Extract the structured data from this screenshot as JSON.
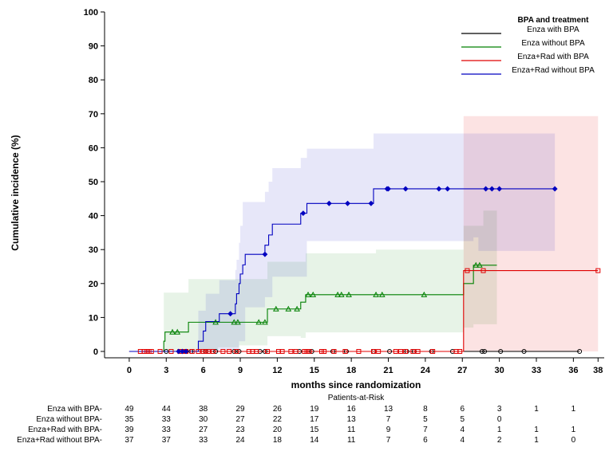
{
  "chart_data": {
    "type": "line",
    "subtype": "step",
    "xlabel": "months since randomization",
    "ylabel": "Cumulative incidence (%)",
    "xlim": [
      -2,
      38.5
    ],
    "ylim": [
      0,
      100
    ],
    "x_ticks": [
      0,
      3,
      6,
      9,
      12,
      15,
      18,
      21,
      24,
      27,
      30,
      33,
      36,
      38
    ],
    "y_ticks": [
      0,
      10,
      20,
      30,
      40,
      50,
      60,
      70,
      80,
      90,
      100
    ],
    "grid": false,
    "legend": {
      "title": "BPA and treatment",
      "placement": "top-right",
      "entries": [
        "Enza with BPA",
        "Enza without BPA",
        "Enza+Rad with BPA",
        "Enza+Rad without BPA"
      ]
    },
    "series": [
      {
        "name": "Enza with BPA",
        "color": "#000000",
        "marker": "circle",
        "steps": [
          [
            0,
            0
          ],
          [
            36.5,
            0
          ]
        ],
        "censored": [
          [
            3,
            0
          ],
          [
            4.2,
            0
          ],
          [
            4.6,
            0
          ],
          [
            5,
            0
          ],
          [
            6.2,
            0
          ],
          [
            7,
            0
          ],
          [
            8.5,
            0
          ],
          [
            8.9,
            0
          ],
          [
            10.6,
            0
          ],
          [
            11,
            0
          ],
          [
            13.8,
            0
          ],
          [
            14.8,
            0
          ],
          [
            16.5,
            0
          ],
          [
            17.6,
            0
          ],
          [
            19.8,
            0
          ],
          [
            21.1,
            0
          ],
          [
            22.5,
            0
          ],
          [
            23.1,
            0
          ],
          [
            24.5,
            0
          ],
          [
            26.2,
            0
          ],
          [
            28.6,
            0
          ],
          [
            28.8,
            0
          ],
          [
            30.1,
            0
          ],
          [
            32,
            0
          ],
          [
            36.5,
            0
          ]
        ]
      },
      {
        "name": "Enza without BPA",
        "color": "#008000",
        "marker": "triangle",
        "steps": [
          [
            0,
            0
          ],
          [
            2.8,
            0
          ],
          [
            2.8,
            3
          ],
          [
            2.9,
            3
          ],
          [
            2.9,
            5.7
          ],
          [
            4.8,
            5.7
          ],
          [
            4.8,
            8.6
          ],
          [
            11.2,
            8.6
          ],
          [
            11.2,
            12.5
          ],
          [
            13.9,
            12.5
          ],
          [
            13.9,
            14.5
          ],
          [
            14.3,
            14.5
          ],
          [
            14.3,
            16.7
          ],
          [
            27.1,
            16.7
          ],
          [
            27.1,
            20
          ],
          [
            27.9,
            20
          ],
          [
            27.9,
            25.4
          ],
          [
            29.8,
            25.4
          ]
        ],
        "censored": [
          [
            3.5,
            5.7
          ],
          [
            3.9,
            5.7
          ],
          [
            7,
            8.6
          ],
          [
            8.5,
            8.6
          ],
          [
            8.8,
            8.6
          ],
          [
            10.5,
            8.6
          ],
          [
            11,
            8.6
          ],
          [
            11.9,
            12.5
          ],
          [
            12.9,
            12.5
          ],
          [
            13.6,
            12.5
          ],
          [
            14.5,
            16.7
          ],
          [
            14.9,
            16.7
          ],
          [
            16.9,
            16.7
          ],
          [
            17.2,
            16.7
          ],
          [
            17.8,
            16.7
          ],
          [
            20,
            16.7
          ],
          [
            20.5,
            16.7
          ],
          [
            23.9,
            16.7
          ],
          [
            28.1,
            25.4
          ],
          [
            28.4,
            25.4
          ]
        ],
        "ci_upper": [
          [
            2.8,
            17.3
          ],
          [
            4.8,
            21.3
          ],
          [
            11.2,
            26.4
          ],
          [
            14.3,
            28.9
          ],
          [
            20,
            30
          ],
          [
            27.1,
            37
          ],
          [
            28.7,
            41.5
          ],
          [
            29.8,
            41.5
          ]
        ],
        "ci_lower": [
          [
            2.8,
            0
          ],
          [
            4.8,
            0
          ],
          [
            6.1,
            0.5
          ],
          [
            7.2,
            1.2
          ],
          [
            8.9,
            1.8
          ],
          [
            11.2,
            4.5
          ],
          [
            13.9,
            4
          ],
          [
            14.3,
            5.6
          ],
          [
            27.1,
            7
          ],
          [
            27.9,
            8
          ],
          [
            29.8,
            8
          ]
        ]
      },
      {
        "name": "Enza+Rad with BPA",
        "color": "#e00000",
        "marker": "square",
        "steps": [
          [
            0,
            0
          ],
          [
            27.1,
            0
          ],
          [
            27.1,
            23.8
          ],
          [
            38,
            23.8
          ]
        ],
        "censored": [
          [
            0.9,
            0
          ],
          [
            1.2,
            0
          ],
          [
            1.4,
            0
          ],
          [
            1.6,
            0
          ],
          [
            1.8,
            0
          ],
          [
            2.5,
            0
          ],
          [
            3.4,
            0
          ],
          [
            4.1,
            0
          ],
          [
            4.4,
            0
          ],
          [
            4.6,
            0
          ],
          [
            5.1,
            0
          ],
          [
            5.6,
            0
          ],
          [
            6,
            0
          ],
          [
            6.2,
            0
          ],
          [
            6.4,
            0
          ],
          [
            6.8,
            0
          ],
          [
            7.6,
            0
          ],
          [
            8.1,
            0
          ],
          [
            8.7,
            0
          ],
          [
            9.7,
            0
          ],
          [
            10,
            0
          ],
          [
            10.3,
            0
          ],
          [
            11.2,
            0
          ],
          [
            12.1,
            0
          ],
          [
            12.4,
            0
          ],
          [
            13.1,
            0
          ],
          [
            13.5,
            0
          ],
          [
            14.2,
            0
          ],
          [
            14.4,
            0
          ],
          [
            14.6,
            0
          ],
          [
            15.6,
            0
          ],
          [
            15.8,
            0
          ],
          [
            16.6,
            0
          ],
          [
            17.5,
            0
          ],
          [
            18.6,
            0
          ],
          [
            19.8,
            0
          ],
          [
            20.2,
            0
          ],
          [
            21.6,
            0
          ],
          [
            22,
            0
          ],
          [
            22.4,
            0
          ],
          [
            23,
            0
          ],
          [
            23.4,
            0
          ],
          [
            24.6,
            0
          ],
          [
            26.5,
            0
          ],
          [
            26.8,
            0
          ],
          [
            27.4,
            23.8
          ],
          [
            28.7,
            23.8
          ],
          [
            38,
            23.8
          ]
        ],
        "ci_upper": [
          [
            27.1,
            69.3
          ],
          [
            38,
            69.3
          ]
        ],
        "ci_lower": [
          [
            27.1,
            0
          ],
          [
            38,
            0
          ]
        ]
      },
      {
        "name": "Enza+Rad without BPA",
        "color": "#0000c0",
        "marker": "diamond",
        "steps": [
          [
            0,
            0
          ],
          [
            5.6,
            0
          ],
          [
            5.6,
            3
          ],
          [
            6,
            3
          ],
          [
            6,
            6
          ],
          [
            6.2,
            6
          ],
          [
            6.2,
            8.8
          ],
          [
            7.3,
            8.8
          ],
          [
            7.3,
            11.1
          ],
          [
            8.6,
            11.1
          ],
          [
            8.6,
            14
          ],
          [
            8.7,
            14
          ],
          [
            8.7,
            17
          ],
          [
            8.9,
            17
          ],
          [
            8.9,
            20
          ],
          [
            9,
            20
          ],
          [
            9,
            22.8
          ],
          [
            9.2,
            22.8
          ],
          [
            9.2,
            25.5
          ],
          [
            9.4,
            25.5
          ],
          [
            9.4,
            28.6
          ],
          [
            11,
            28.6
          ],
          [
            11,
            31.3
          ],
          [
            11.3,
            31.3
          ],
          [
            11.3,
            34.3
          ],
          [
            11.6,
            34.3
          ],
          [
            11.6,
            37.5
          ],
          [
            13.9,
            37.5
          ],
          [
            13.9,
            40.7
          ],
          [
            14.4,
            40.7
          ],
          [
            14.4,
            43.6
          ],
          [
            19.8,
            43.6
          ],
          [
            19.8,
            47.9
          ],
          [
            34.5,
            47.9
          ]
        ],
        "censored": [
          [
            4,
            0
          ],
          [
            4.3,
            0
          ],
          [
            4.6,
            0
          ],
          [
            8.2,
            11.1
          ],
          [
            11,
            28.6
          ],
          [
            14.1,
            40.7
          ],
          [
            16.2,
            43.6
          ],
          [
            17.7,
            43.6
          ],
          [
            19.6,
            43.6
          ],
          [
            20.9,
            47.9
          ],
          [
            21,
            47.9
          ],
          [
            22.4,
            47.9
          ],
          [
            25.1,
            47.9
          ],
          [
            25.8,
            47.9
          ],
          [
            28.9,
            47.9
          ],
          [
            29.4,
            47.9
          ],
          [
            30,
            47.9
          ],
          [
            34.5,
            47.9
          ]
        ],
        "ci_upper": [
          [
            5.6,
            12
          ],
          [
            6.2,
            17
          ],
          [
            7.3,
            21
          ],
          [
            8.6,
            24
          ],
          [
            8.7,
            27
          ],
          [
            8.9,
            32
          ],
          [
            9,
            37
          ],
          [
            9.2,
            44
          ],
          [
            11,
            47
          ],
          [
            11.3,
            50
          ],
          [
            11.6,
            54
          ],
          [
            13.9,
            57
          ],
          [
            14.4,
            59.7
          ],
          [
            19.8,
            64.2
          ],
          [
            34.5,
            64.2
          ]
        ],
        "ci_lower": [
          [
            5.6,
            0
          ],
          [
            7.3,
            0.5
          ],
          [
            8.9,
            3
          ],
          [
            9.4,
            13
          ],
          [
            11,
            16
          ],
          [
            11.6,
            22
          ],
          [
            14.4,
            32.5
          ],
          [
            19.8,
            32.5
          ],
          [
            27.9,
            33.6
          ],
          [
            28.3,
            29.6
          ],
          [
            34.5,
            29.6
          ]
        ]
      }
    ],
    "at_risk": {
      "title": "Patients-at-Risk",
      "times": [
        0,
        3,
        6,
        9,
        12,
        15,
        18,
        21,
        24,
        27,
        30,
        33,
        36
      ],
      "rows": [
        {
          "label": "Enza with BPA-",
          "values": [
            "49",
            "44",
            "38",
            "29",
            "26",
            "19",
            "16",
            "13",
            "8",
            "6",
            "3",
            "1",
            "1"
          ]
        },
        {
          "label": "Enza without BPA-",
          "values": [
            "35",
            "33",
            "30",
            "27",
            "22",
            "17",
            "13",
            "7",
            "5",
            "5",
            "0",
            "",
            ""
          ]
        },
        {
          "label": "Enza+Rad with BPA-",
          "values": [
            "39",
            "33",
            "27",
            "23",
            "20",
            "15",
            "11",
            "9",
            "7",
            "4",
            "1",
            "1",
            "1"
          ]
        },
        {
          "label": "Enza+Rad without BPA-",
          "values": [
            "37",
            "37",
            "33",
            "24",
            "18",
            "14",
            "11",
            "7",
            "6",
            "4",
            "2",
            "1",
            "0"
          ]
        }
      ]
    }
  }
}
